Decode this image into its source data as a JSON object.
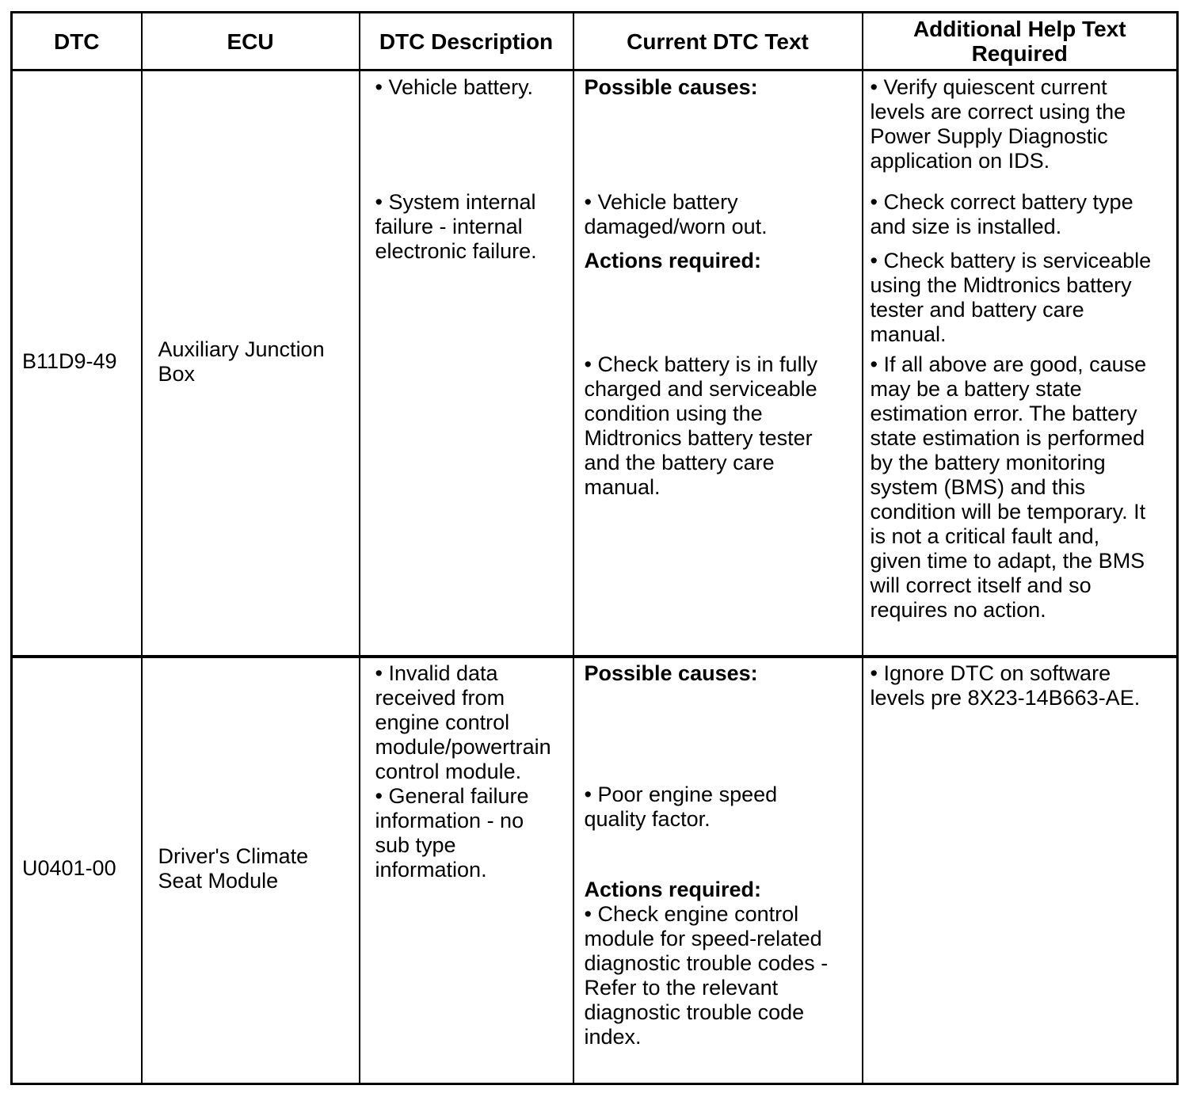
{
  "colors": {
    "background": "#ffffff",
    "border": "#000000",
    "text": "#000000"
  },
  "table": {
    "headers": [
      "DTC",
      "ECU",
      "DTC Description",
      "Current DTC Text",
      "Additional Help Text\nRequired"
    ],
    "rows": [
      {
        "dtc": "B11D9-49",
        "ecu": "Auxiliary Junction\nBox",
        "description": [
          "• Vehicle battery.",
          "• System internal\nfailure - internal\nelectronic failure."
        ],
        "current": [
          "Possible causes:",
          "• Vehicle battery\ndamaged/worn out.",
          "Actions required:",
          "• Check battery is in fully\ncharged and serviceable\ncondition using the\nMidtronics battery tester\nand the battery care\nmanual."
        ],
        "help": [
          "• Verify quiescent current\nlevels are correct using the\nPower Supply Diagnostic\napplication on IDS.",
          "• Check correct battery type\nand size is installed.",
          "• Check battery is serviceable\nusing the Midtronics battery\ntester and battery care\nmanual.",
          "• If all above are good, cause\nmay be a battery state\nestimation error. The battery\nstate estimation is performed\nby the battery monitoring\nsystem (BMS) and this\ncondition will be temporary. It\nis not a critical fault and,\ngiven time to adapt, the BMS\nwill correct itself and so\nrequires no action."
        ]
      },
      {
        "dtc": "U0401-00",
        "ecu": "Driver's Climate\nSeat Module",
        "description": [
          "• Invalid data\nreceived from\nengine control\nmodule/powertrain\ncontrol module.",
          "• General failure\ninformation - no\nsub type\ninformation."
        ],
        "current": [
          "Possible causes:",
          "• Poor engine speed\nquality factor.",
          "Actions required:",
          "• Check engine control\nmodule for speed-related\ndiagnostic trouble codes -\nRefer to the relevant\ndiagnostic trouble code\nindex."
        ],
        "help": [
          "• Ignore DTC on software\nlevels pre 8X23-14B663-AE."
        ]
      }
    ]
  }
}
